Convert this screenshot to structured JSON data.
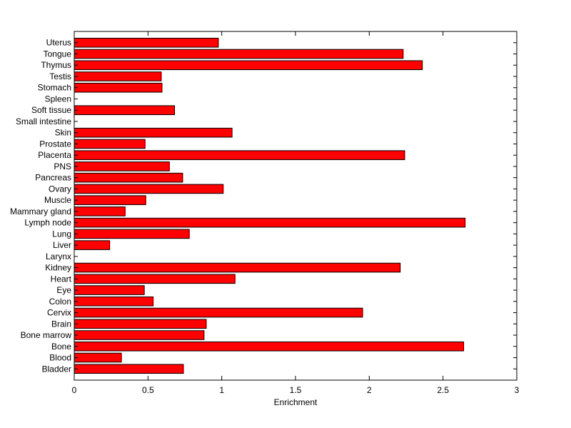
{
  "chart_data": {
    "type": "bar",
    "orientation": "horizontal",
    "title": "",
    "xlabel": "Enrichment",
    "ylabel": "",
    "xlim": [
      0,
      3
    ],
    "xticks": [
      "0",
      "0.5",
      "1",
      "1.5",
      "2",
      "2.5",
      "3"
    ],
    "grid": false,
    "bar_color": "#ff0000",
    "categories": [
      "Bladder",
      "Blood",
      "Bone",
      "Bone marrow",
      "Brain",
      "Cervix",
      "Colon",
      "Eye",
      "Heart",
      "Kidney",
      "Larynx",
      "Liver",
      "Lung",
      "Lymph node",
      "Mammary gland",
      "Muscle",
      "Ovary",
      "Pancreas",
      "PNS",
      "Placenta",
      "Prostate",
      "Skin",
      "Small intestine",
      "Soft tissue",
      "Spleen",
      "Stomach",
      "Testis",
      "Thymus",
      "Tongue",
      "Uterus"
    ],
    "values": [
      0.74,
      0.32,
      2.64,
      0.88,
      0.895,
      1.955,
      0.535,
      0.475,
      1.09,
      2.21,
      0,
      0.24,
      0.78,
      2.65,
      0.345,
      0.485,
      1.01,
      0.735,
      0.645,
      2.24,
      0.48,
      1.07,
      0,
      0.68,
      0,
      0.595,
      0.59,
      2.36,
      2.23,
      0.977
    ]
  }
}
